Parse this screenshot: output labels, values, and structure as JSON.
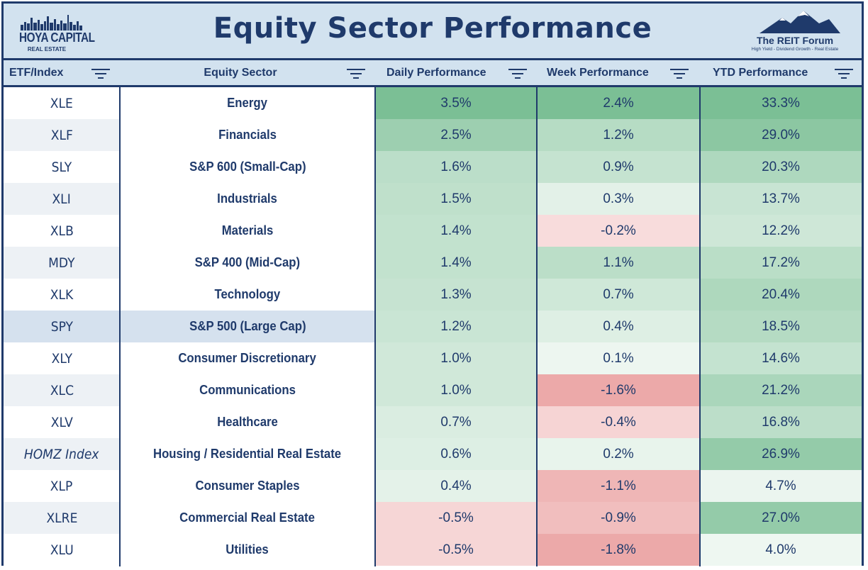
{
  "header": {
    "title": "Equity Sector Performance",
    "left_logo": {
      "brand": "HOYA CAPITAL",
      "sub": "REAL ESTATE"
    },
    "right_logo": {
      "name": "The REIT Forum",
      "tagline": "High Yield - Dividend Growth - Real Estate"
    }
  },
  "columns": {
    "etf": "ETF/Index",
    "sector": "Equity Sector",
    "daily": "Daily Performance",
    "week": "Week Performance",
    "ytd": "YTD Performance"
  },
  "colors": {
    "navy": "#1f3a6b",
    "header_bg": "#d2e2ef",
    "positive": "#5aaf7a",
    "negative": "#e06f6f",
    "spy_highlight": "#d5e1ee"
  },
  "chart_data": {
    "type": "table",
    "title": "Equity Sector Performance",
    "columns": [
      "ETF/Index",
      "Equity Sector",
      "Daily Performance",
      "Week Performance",
      "YTD Performance"
    ],
    "rows": [
      {
        "etf": "XLE",
        "sector": "Energy",
        "daily": "3.5%",
        "week": "2.4%",
        "ytd": "33.3%"
      },
      {
        "etf": "XLF",
        "sector": "Financials",
        "daily": "2.5%",
        "week": "1.2%",
        "ytd": "29.0%"
      },
      {
        "etf": "SLY",
        "sector": "S&P 600 (Small-Cap)",
        "daily": "1.6%",
        "week": "0.9%",
        "ytd": "20.3%"
      },
      {
        "etf": "XLI",
        "sector": "Industrials",
        "daily": "1.5%",
        "week": "0.3%",
        "ytd": "13.7%"
      },
      {
        "etf": "XLB",
        "sector": "Materials",
        "daily": "1.4%",
        "week": "-0.2%",
        "ytd": "12.2%"
      },
      {
        "etf": "MDY",
        "sector": "S&P 400 (Mid-Cap)",
        "daily": "1.4%",
        "week": "1.1%",
        "ytd": "17.2%"
      },
      {
        "etf": "XLK",
        "sector": "Technology",
        "daily": "1.3%",
        "week": "0.7%",
        "ytd": "20.4%"
      },
      {
        "etf": "SPY",
        "sector": "S&P 500 (Large Cap)",
        "daily": "1.2%",
        "week": "0.4%",
        "ytd": "18.5%"
      },
      {
        "etf": "XLY",
        "sector": "Consumer Discretionary",
        "daily": "1.0%",
        "week": "0.1%",
        "ytd": "14.6%"
      },
      {
        "etf": "XLC",
        "sector": "Communications",
        "daily": "1.0%",
        "week": "-1.6%",
        "ytd": "21.2%"
      },
      {
        "etf": "XLV",
        "sector": "Healthcare",
        "daily": "0.7%",
        "week": "-0.4%",
        "ytd": "16.8%"
      },
      {
        "etf": "HOMZ Index",
        "sector": "Housing / Residential Real Estate",
        "daily": "0.6%",
        "week": "0.2%",
        "ytd": "26.9%"
      },
      {
        "etf": "XLP",
        "sector": "Consumer Staples",
        "daily": "0.4%",
        "week": "-1.1%",
        "ytd": "4.7%"
      },
      {
        "etf": "XLRE",
        "sector": "Commercial Real Estate",
        "daily": "-0.5%",
        "week": "-0.9%",
        "ytd": "27.0%"
      },
      {
        "etf": "XLU",
        "sector": "Utilities",
        "daily": "-0.5%",
        "week": "-1.8%",
        "ytd": "4.0%"
      }
    ]
  }
}
